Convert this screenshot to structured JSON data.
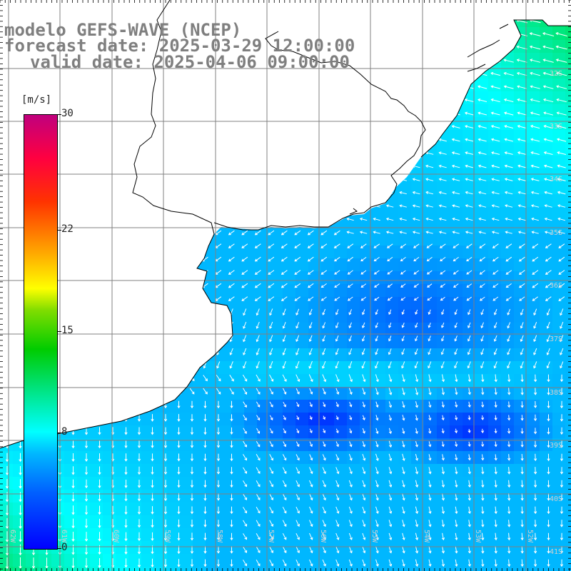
{
  "title": {
    "line1": "modelo GEFS-WAVE (NCEP)",
    "line2": "forecast date: 2025-03-29 12:00:00",
    "line3": "valid date: 2025-04-06 09:00:00"
  },
  "colorbar": {
    "unit": "[m/s]",
    "ticks": [
      "30",
      "22",
      "15",
      "8",
      "0"
    ],
    "tick_values": [
      30,
      22,
      15,
      8,
      0
    ],
    "min": 0,
    "max": 30,
    "colors": [
      "#0000ff",
      "#0060ff",
      "#00b8ff",
      "#00ffff",
      "#00cc00",
      "#ffff00",
      "#ff3300",
      "#c0007e"
    ]
  },
  "lat_labels": [
    "32S",
    "33S",
    "34S",
    "35S",
    "36S",
    "37S",
    "38S",
    "39S",
    "40S",
    "41S"
  ],
  "lon_labels": [
    "62W",
    "61W",
    "60W",
    "59W",
    "58W",
    "57W",
    "56W",
    "55W",
    "54W",
    "53W",
    "52W"
  ],
  "map": {
    "lat_range": [
      -41.5,
      -31.2
    ],
    "lon_range": [
      -62.8,
      -52.2
    ],
    "land_color": "#ffffff",
    "grid_color": "#808080",
    "coast_color": "#000000",
    "arrow_color": "#ffffff",
    "field": "wind speed",
    "field_unit": "m/s"
  }
}
